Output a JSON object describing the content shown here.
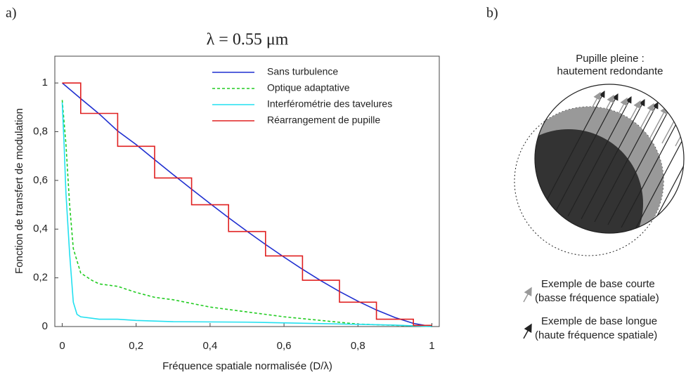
{
  "panel_labels": [
    "a)",
    "b)"
  ],
  "chart_data": {
    "type": "line",
    "title": "λ = 0.55 μm",
    "x_label": "Fréquence spatiale normalisée (D/λ)",
    "y_label": "Fonction de transfert de modulation",
    "xlim": [
      -0.02,
      1.02
    ],
    "ylim": [
      0,
      1.11
    ],
    "xticks": [
      0,
      {
        "value": 0.2,
        "label": "0,2"
      },
      {
        "value": 0.4,
        "label": "0,4"
      },
      {
        "value": 0.6,
        "label": "0,6"
      },
      {
        "value": 0.8,
        "label": "0,8"
      },
      1
    ],
    "yticks": [
      0,
      {
        "value": 0.2,
        "label": "0,2"
      },
      {
        "value": 0.4,
        "label": "0,4"
      },
      {
        "value": 0.6,
        "label": "0,6"
      },
      {
        "value": 0.8,
        "label": "0,8"
      },
      1
    ],
    "series": [
      {
        "name": "Sans turbulence",
        "color": "#1f2fd0",
        "dash": false,
        "x": [
          0,
          0.05,
          0.1,
          0.15,
          0.2,
          0.25,
          0.3,
          0.35,
          0.4,
          0.45,
          0.5,
          0.55,
          0.6,
          0.65,
          0.7,
          0.75,
          0.8,
          0.85,
          0.9,
          0.95,
          1
        ],
        "values": [
          1,
          0.936,
          0.873,
          0.803,
          0.747,
          0.685,
          0.624,
          0.564,
          0.505,
          0.447,
          0.391,
          0.337,
          0.285,
          0.235,
          0.188,
          0.144,
          0.104,
          0.068,
          0.037,
          0.013,
          0
        ]
      },
      {
        "name": "Optique adaptative",
        "color": "#22cc22",
        "dash": true,
        "x": [
          0,
          0.01,
          0.02,
          0.03,
          0.05,
          0.08,
          0.1,
          0.15,
          0.2,
          0.25,
          0.3,
          0.4,
          0.5,
          0.6,
          0.7,
          0.8,
          0.9,
          1
        ],
        "values": [
          0.93,
          0.75,
          0.5,
          0.32,
          0.22,
          0.19,
          0.175,
          0.165,
          0.14,
          0.12,
          0.11,
          0.08,
          0.06,
          0.04,
          0.025,
          0.01,
          0.005,
          0
        ]
      },
      {
        "name": "Interférométrie des tavelures",
        "color": "#22e0f0",
        "dash": false,
        "x": [
          0,
          0.005,
          0.01,
          0.02,
          0.03,
          0.04,
          0.05,
          0.1,
          0.15,
          0.2,
          0.3,
          0.5,
          0.7,
          0.9,
          1
        ],
        "values": [
          0.92,
          0.75,
          0.55,
          0.3,
          0.1,
          0.05,
          0.04,
          0.03,
          0.03,
          0.025,
          0.02,
          0.018,
          0.012,
          0.006,
          0
        ]
      },
      {
        "name": "Réarrangement de pupille",
        "color": "#e02020",
        "dash": false,
        "x": [
          0,
          0.05,
          0.05,
          0.15,
          0.15,
          0.25,
          0.25,
          0.35,
          0.35,
          0.45,
          0.45,
          0.55,
          0.55,
          0.65,
          0.65,
          0.75,
          0.75,
          0.85,
          0.85,
          0.95,
          0.95,
          1
        ],
        "values": [
          1,
          1,
          0.875,
          0.875,
          0.74,
          0.74,
          0.61,
          0.61,
          0.5,
          0.5,
          0.39,
          0.39,
          0.29,
          0.29,
          0.19,
          0.19,
          0.1,
          0.1,
          0.03,
          0.03,
          0.005,
          0.005
        ]
      }
    ]
  },
  "diagram": {
    "title_lines": [
      "Pupille pleine :",
      "hautement redondante"
    ],
    "legend": [
      {
        "lines": [
          "Exemple de base courte",
          "(basse fréquence spatiale)"
        ]
      },
      {
        "lines": [
          "Exemple de base longue",
          "(haute fréquence spatiale)"
        ]
      }
    ]
  }
}
